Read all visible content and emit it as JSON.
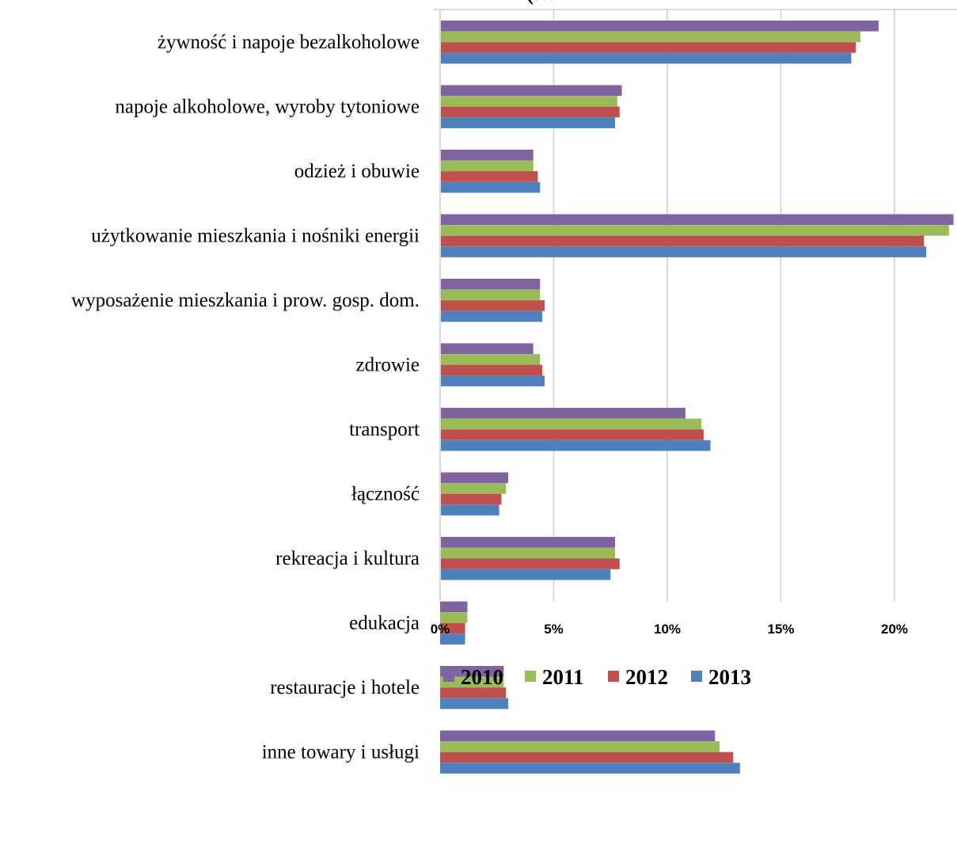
{
  "chart_data": {
    "type": "bar",
    "orientation": "horizontal",
    "title": "",
    "xlabel": "",
    "ylabel": "",
    "xlim": [
      0,
      0.225
    ],
    "x_ticks": [
      0,
      0.05,
      0.1,
      0.15,
      0.2
    ],
    "x_tick_labels": [
      "0%",
      "5%",
      "10%",
      "15%",
      "20%"
    ],
    "grid": true,
    "legend_position": "bottom",
    "categories": [
      "żywność i napoje bezalkoholowe",
      "napoje alkoholowe, wyroby tytoniowe",
      "odzież i obuwie",
      "użytkowanie mieszkania i nośniki energii",
      "wyposażenie mieszkania i prow. gosp. dom.",
      "zdrowie",
      "transport",
      "łączność",
      "rekreacja i kultura",
      "edukacja",
      "restauracje i hotele",
      "inne towary i usługi"
    ],
    "series": [
      {
        "name": "2010",
        "color": "#8064A2",
        "values": [
          0.193,
          0.08,
          0.041,
          0.226,
          0.044,
          0.041,
          0.108,
          0.03,
          0.077,
          0.012,
          0.028,
          0.121
        ]
      },
      {
        "name": "2011",
        "color": "#9BBB59",
        "values": [
          0.185,
          0.078,
          0.041,
          0.224,
          0.044,
          0.044,
          0.115,
          0.029,
          0.077,
          0.012,
          0.028,
          0.123
        ]
      },
      {
        "name": "2012",
        "color": "#C0504D",
        "values": [
          0.183,
          0.079,
          0.043,
          0.213,
          0.046,
          0.045,
          0.116,
          0.027,
          0.079,
          0.011,
          0.029,
          0.129
        ]
      },
      {
        "name": "2013",
        "color": "#4F81BD",
        "values": [
          0.181,
          0.077,
          0.044,
          0.214,
          0.045,
          0.046,
          0.119,
          0.026,
          0.075,
          0.011,
          0.03,
          0.132
        ]
      }
    ],
    "partial_title_visible": "(…"
  }
}
